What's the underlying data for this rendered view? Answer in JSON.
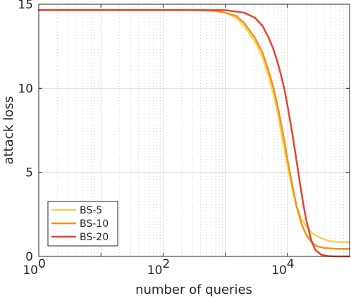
{
  "chart_data": {
    "type": "line",
    "xlabel": "number of queries",
    "ylabel": "attack loss",
    "xscale": "log",
    "xlim": [
      1,
      100000
    ],
    "ylim": [
      0,
      15
    ],
    "grid": true,
    "legend_position": "bottom-left",
    "x_ticks": [
      {
        "value": 1,
        "base": "10",
        "exp": "0"
      },
      {
        "value": 100,
        "base": "10",
        "exp": "2"
      },
      {
        "value": 10000,
        "base": "10",
        "exp": "4"
      }
    ],
    "y_ticks": [
      {
        "value": 0,
        "label": "0"
      },
      {
        "value": 5,
        "label": "5"
      },
      {
        "value": 10,
        "label": "10"
      },
      {
        "value": 15,
        "label": "15"
      }
    ],
    "series": [
      {
        "name": "BS-5",
        "color": "#f6d45a",
        "points": [
          [
            1,
            14.65
          ],
          [
            100,
            14.65
          ],
          [
            300,
            14.65
          ],
          [
            700,
            14.6
          ],
          [
            1000,
            14.5
          ],
          [
            1500,
            14.2
          ],
          [
            2000,
            13.7
          ],
          [
            3000,
            12.8
          ],
          [
            4000,
            11.8
          ],
          [
            5000,
            10.7
          ],
          [
            6000,
            9.6
          ],
          [
            7000,
            8.5
          ],
          [
            8000,
            7.3
          ],
          [
            9000,
            6.3
          ],
          [
            10000,
            5.4
          ],
          [
            12000,
            4.0
          ],
          [
            14000,
            3.0
          ],
          [
            17000,
            2.2
          ],
          [
            20000,
            1.8
          ],
          [
            25000,
            1.4
          ],
          [
            30000,
            1.2
          ],
          [
            40000,
            1.0
          ],
          [
            50000,
            0.9
          ],
          [
            70000,
            0.85
          ],
          [
            100000,
            0.85
          ]
        ]
      },
      {
        "name": "BS-10",
        "color": "#f09418",
        "points": [
          [
            1,
            14.65
          ],
          [
            100,
            14.65
          ],
          [
            300,
            14.65
          ],
          [
            700,
            14.6
          ],
          [
            1000,
            14.5
          ],
          [
            1500,
            14.3
          ],
          [
            2000,
            13.9
          ],
          [
            3000,
            13.0
          ],
          [
            4000,
            12.1
          ],
          [
            5000,
            11.0
          ],
          [
            6000,
            10.0
          ],
          [
            7000,
            8.9
          ],
          [
            8000,
            7.8
          ],
          [
            9000,
            6.8
          ],
          [
            10000,
            5.8
          ],
          [
            12000,
            4.2
          ],
          [
            14000,
            3.0
          ],
          [
            17000,
            1.9
          ],
          [
            20000,
            1.3
          ],
          [
            25000,
            0.8
          ],
          [
            30000,
            0.6
          ],
          [
            40000,
            0.5
          ],
          [
            60000,
            0.45
          ],
          [
            100000,
            0.45
          ]
        ]
      },
      {
        "name": "BS-20",
        "color": "#e64330",
        "points": [
          [
            1,
            14.65
          ],
          [
            100,
            14.65
          ],
          [
            500,
            14.65
          ],
          [
            1000,
            14.65
          ],
          [
            2000,
            14.5
          ],
          [
            3000,
            14.2
          ],
          [
            4000,
            13.7
          ],
          [
            5000,
            13.0
          ],
          [
            6000,
            12.3
          ],
          [
            7000,
            11.5
          ],
          [
            8000,
            10.7
          ],
          [
            9000,
            9.9
          ],
          [
            10000,
            9.0
          ],
          [
            12000,
            7.3
          ],
          [
            14000,
            5.7
          ],
          [
            16000,
            4.3
          ],
          [
            18000,
            3.1
          ],
          [
            20000,
            2.2
          ],
          [
            24000,
            1.0
          ],
          [
            28000,
            0.4
          ],
          [
            35000,
            0.1
          ],
          [
            45000,
            0.02
          ],
          [
            60000,
            0.0
          ],
          [
            100000,
            0.0
          ]
        ]
      }
    ]
  }
}
